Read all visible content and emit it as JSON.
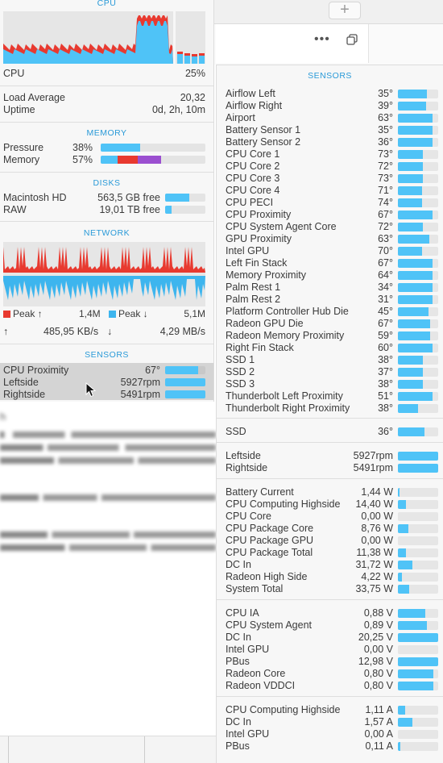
{
  "cpu": {
    "header": "CPU",
    "label": "CPU",
    "value": "25%",
    "load_label": "Load Average",
    "load_value": "20,32",
    "uptime_label": "Uptime",
    "uptime_value": "0d, 2h, 10m"
  },
  "memory": {
    "header": "MEMORY",
    "pressure_label": "Pressure",
    "pressure_value": "38%",
    "pressure_fill": 0.38,
    "memory_label": "Memory",
    "memory_value": "57%"
  },
  "disks": {
    "header": "DISKS",
    "items": [
      {
        "name": "Macintosh HD",
        "free": "563,5 GB free",
        "fill": 0.6
      },
      {
        "name": "RAW",
        "free": "19,01 TB free",
        "fill": 0.15
      }
    ]
  },
  "network": {
    "header": "NETWORK",
    "peak_up_label": "Peak ↑",
    "peak_up_value": "1,4M",
    "peak_down_label": "Peak ↓",
    "peak_down_value": "5,1M",
    "up_arrow": "↑",
    "up_rate": "485,95 KB/s",
    "down_arrow": "↓",
    "down_rate": "4,29 MB/s",
    "up_color": "#e8392f",
    "down_color": "#3db5ee"
  },
  "left_sensors": {
    "header": "SENSORS",
    "items": [
      {
        "name": "CPU Proximity",
        "value": "67°",
        "fill": 0.82
      },
      {
        "name": "Leftside",
        "value": "5927rpm",
        "fill": 1.0
      },
      {
        "name": "Rightside",
        "value": "5491rpm",
        "fill": 1.0
      }
    ]
  },
  "right": {
    "header": "SENSORS",
    "temps": [
      {
        "name": "Airflow Left",
        "value": "35°",
        "fill": 0.72
      },
      {
        "name": "Airflow Right",
        "value": "39°",
        "fill": 0.7
      },
      {
        "name": "Airport",
        "value": "63°",
        "fill": 0.85
      },
      {
        "name": "Battery Sensor 1",
        "value": "35°",
        "fill": 0.85
      },
      {
        "name": "Battery Sensor 2",
        "value": "36°",
        "fill": 0.85
      },
      {
        "name": "CPU Core 1",
        "value": "73°",
        "fill": 0.62
      },
      {
        "name": "CPU Core 2",
        "value": "72°",
        "fill": 0.62
      },
      {
        "name": "CPU Core 3",
        "value": "73°",
        "fill": 0.62
      },
      {
        "name": "CPU Core 4",
        "value": "71°",
        "fill": 0.6
      },
      {
        "name": "CPU PECI",
        "value": "74°",
        "fill": 0.6
      },
      {
        "name": "CPU Proximity",
        "value": "67°",
        "fill": 0.85
      },
      {
        "name": "CPU System Agent Core",
        "value": "72°",
        "fill": 0.62
      },
      {
        "name": "GPU Proximity",
        "value": "63°",
        "fill": 0.78
      },
      {
        "name": "Intel GPU",
        "value": "70°",
        "fill": 0.6
      },
      {
        "name": "Left Fin Stack",
        "value": "67°",
        "fill": 0.85
      },
      {
        "name": "Memory Proximity",
        "value": "64°",
        "fill": 0.85
      },
      {
        "name": "Palm Rest 1",
        "value": "34°",
        "fill": 0.85
      },
      {
        "name": "Palm Rest 2",
        "value": "31°",
        "fill": 0.85
      },
      {
        "name": "Platform Controller Hub Die",
        "value": "45°",
        "fill": 0.75
      },
      {
        "name": "Radeon GPU Die",
        "value": "67°",
        "fill": 0.8
      },
      {
        "name": "Radeon Memory Proximity",
        "value": "59°",
        "fill": 0.8
      },
      {
        "name": "Right Fin Stack",
        "value": "60°",
        "fill": 0.85
      },
      {
        "name": "SSD 1",
        "value": "38°",
        "fill": 0.62
      },
      {
        "name": "SSD 2",
        "value": "37°",
        "fill": 0.62
      },
      {
        "name": "SSD 3",
        "value": "38°",
        "fill": 0.62
      },
      {
        "name": "Thunderbolt Left Proximity",
        "value": "51°",
        "fill": 0.85
      },
      {
        "name": "Thunderbolt Right Proximity",
        "value": "38°",
        "fill": 0.5
      }
    ],
    "ssd": [
      {
        "name": "SSD",
        "value": "36°",
        "fill": 0.65
      }
    ],
    "fans": [
      {
        "name": "Leftside",
        "value": "5927rpm",
        "fill": 1.0
      },
      {
        "name": "Rightside",
        "value": "5491rpm",
        "fill": 1.0
      }
    ],
    "power": [
      {
        "name": "Battery Current",
        "value": "1,44 W",
        "fill": 0.03
      },
      {
        "name": "CPU Computing Highside",
        "value": "14,40 W",
        "fill": 0.2
      },
      {
        "name": "CPU Core",
        "value": "0,00 W",
        "fill": 0.0
      },
      {
        "name": "CPU Package Core",
        "value": "8,76 W",
        "fill": 0.25
      },
      {
        "name": "CPU Package GPU",
        "value": "0,00 W",
        "fill": 0.0
      },
      {
        "name": "CPU Package Total",
        "value": "11,38 W",
        "fill": 0.2
      },
      {
        "name": "DC In",
        "value": "31,72 W",
        "fill": 0.35
      },
      {
        "name": "Radeon High Side",
        "value": "4,22 W",
        "fill": 0.1
      },
      {
        "name": "System Total",
        "value": "33,75 W",
        "fill": 0.28
      }
    ],
    "voltage": [
      {
        "name": "CPU IA",
        "value": "0,88 V",
        "fill": 0.68
      },
      {
        "name": "CPU System Agent",
        "value": "0,89 V",
        "fill": 0.72
      },
      {
        "name": "DC In",
        "value": "20,25 V",
        "fill": 1.0
      },
      {
        "name": "Intel GPU",
        "value": "0,00 V",
        "fill": 0.0
      },
      {
        "name": "PBus",
        "value": "12,98 V",
        "fill": 1.0
      },
      {
        "name": "Radeon Core",
        "value": "0,80 V",
        "fill": 0.88
      },
      {
        "name": "Radeon VDDCI",
        "value": "0,80 V",
        "fill": 0.88
      }
    ],
    "current": [
      {
        "name": "CPU Computing Highside",
        "value": "1,11 A",
        "fill": 0.18
      },
      {
        "name": "DC In",
        "value": "1,57 A",
        "fill": 0.35
      },
      {
        "name": "Intel GPU",
        "value": "0,00 A",
        "fill": 0.0
      },
      {
        "name": "PBus",
        "value": "0,11 A",
        "fill": 0.05
      }
    ]
  }
}
